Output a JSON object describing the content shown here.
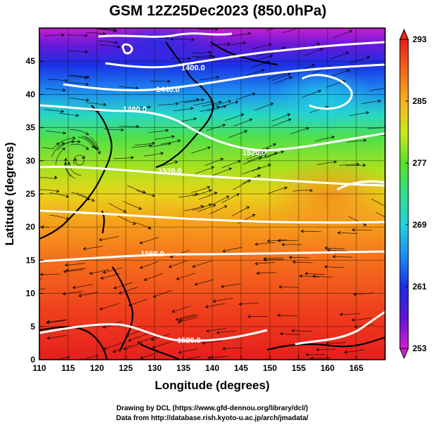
{
  "title": "GSM 12Z25Dec2023 (850.0hPa)",
  "x_axis": {
    "label": "Longitude (degrees)",
    "min": 110,
    "max": 170,
    "ticks": [
      "110",
      "115",
      "120",
      "125",
      "130",
      "135",
      "140",
      "145",
      "150",
      "155",
      "160",
      "165"
    ]
  },
  "y_axis": {
    "label": "Latitude (degrees)",
    "min": 0,
    "max": 50,
    "ticks": [
      "0",
      "5",
      "10",
      "15",
      "20",
      "25",
      "30",
      "35",
      "40",
      "45"
    ]
  },
  "colorbar": {
    "min": 253,
    "max": 293,
    "labels": [
      "293",
      "285",
      "277",
      "269",
      "261",
      "253"
    ],
    "stops": [
      {
        "value": 253,
        "color": "#d21fd2"
      },
      {
        "value": 257,
        "color": "#5f14d8"
      },
      {
        "value": 261,
        "color": "#1a2ee6"
      },
      {
        "value": 265,
        "color": "#1d8cf0"
      },
      {
        "value": 269,
        "color": "#22d2e0"
      },
      {
        "value": 273,
        "color": "#2fe08a"
      },
      {
        "value": 277,
        "color": "#5ae02a"
      },
      {
        "value": 281,
        "color": "#c9e81c"
      },
      {
        "value": 285,
        "color": "#f7b21c"
      },
      {
        "value": 289,
        "color": "#f5661c"
      },
      {
        "value": 293,
        "color": "#e81e1e"
      }
    ]
  },
  "contour_labels": [
    "1400.0",
    "1440.0",
    "1480.0",
    "1520.0",
    "1520.0",
    "1560.0",
    "1520.0"
  ],
  "credits": {
    "line1": "Drawing by DCL (https://www.gfd-dennou.org/library/dcl/)",
    "line2": "Data from http://database.rish.kyoto-u.ac.jp/arch/jmadata/"
  }
}
